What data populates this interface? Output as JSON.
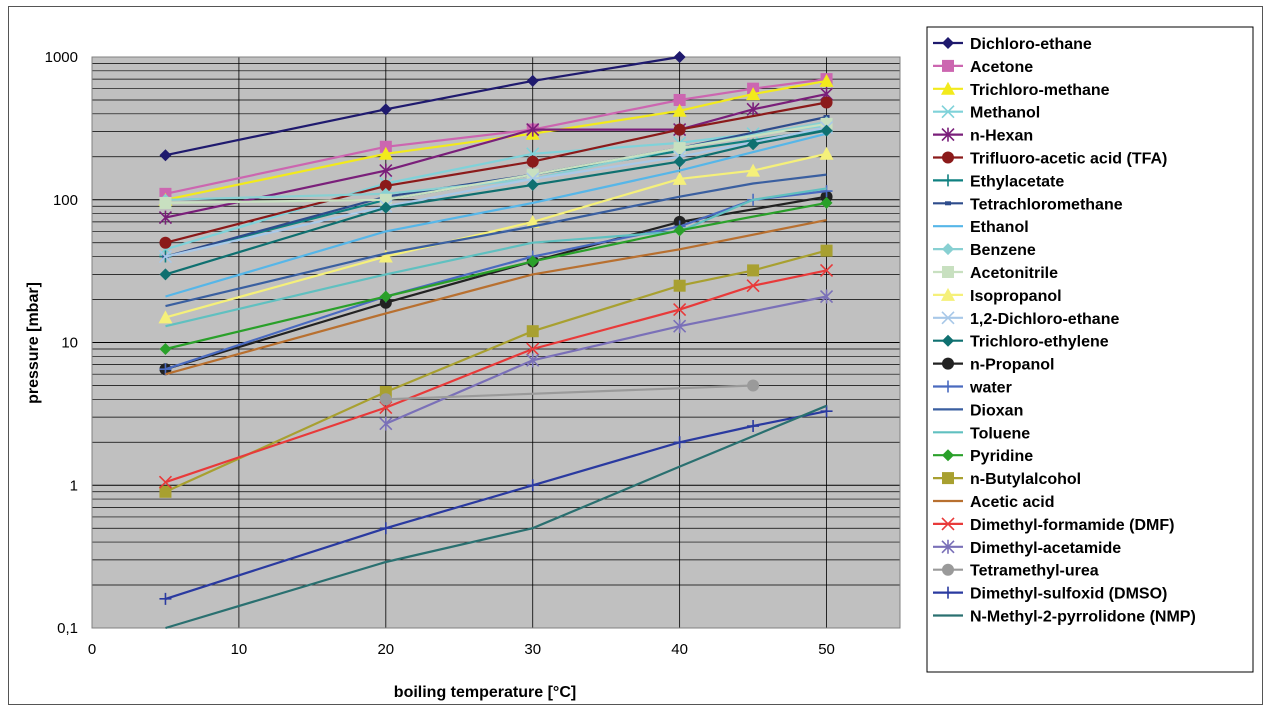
{
  "chart_data": {
    "type": "line",
    "title": "",
    "xlabel": "boiling temperature [°C]",
    "ylabel": "pressure [mbar]",
    "xlim": [
      0,
      55
    ],
    "ylim": [
      0.1,
      1000
    ],
    "yscale": "log",
    "grid": true,
    "legend_position": "right",
    "x_ticks": [
      "0",
      "10",
      "20",
      "30",
      "40",
      "50"
    ],
    "y_ticks": [
      "0,1",
      "1",
      "10",
      "100",
      "1000"
    ],
    "series": [
      {
        "name": "Dichloro-ethane",
        "color": "#1f1a6e",
        "marker": "diamond",
        "points": [
          [
            5,
            205
          ],
          [
            20,
            430
          ],
          [
            30,
            680
          ],
          [
            40,
            1000
          ]
        ]
      },
      {
        "name": "Acetone",
        "color": "#cc66b0",
        "marker": "square",
        "points": [
          [
            5,
            110
          ],
          [
            20,
            235
          ],
          [
            30,
            310
          ],
          [
            40,
            500
          ],
          [
            45,
            600
          ],
          [
            50,
            700
          ]
        ]
      },
      {
        "name": "Trichloro-methane",
        "color": "#f2ea1c",
        "marker": "triangle",
        "points": [
          [
            5,
            100
          ],
          [
            20,
            210
          ],
          [
            30,
            290
          ],
          [
            40,
            420
          ],
          [
            45,
            550
          ],
          [
            50,
            680
          ]
        ]
      },
      {
        "name": "Methanol",
        "color": "#7fd2d9",
        "marker": "x",
        "points": [
          [
            5,
            45
          ],
          [
            20,
            130
          ],
          [
            30,
            210
          ],
          [
            40,
            250
          ],
          [
            45,
            290
          ],
          [
            50,
            330
          ]
        ]
      },
      {
        "name": "n-Hexan",
        "color": "#7a1f7a",
        "marker": "star",
        "points": [
          [
            5,
            75
          ],
          [
            20,
            160
          ],
          [
            30,
            310
          ],
          [
            40,
            310
          ],
          [
            45,
            430
          ],
          [
            50,
            550
          ]
        ]
      },
      {
        "name": "Trifluoro-acetic acid (TFA)",
        "color": "#8b1a1a",
        "marker": "circle",
        "points": [
          [
            5,
            50
          ],
          [
            20,
            125
          ],
          [
            30,
            185
          ],
          [
            40,
            310
          ],
          [
            50,
            480
          ]
        ]
      },
      {
        "name": "Ethylacetate",
        "color": "#0f8080",
        "marker": "plus",
        "points": [
          [
            5,
            40
          ],
          [
            20,
            100
          ],
          [
            30,
            150
          ],
          [
            40,
            220
          ],
          [
            50,
            310
          ]
        ]
      },
      {
        "name": "Tetrachloromethane",
        "color": "#2e4c8c",
        "marker": "dash",
        "points": [
          [
            5,
            40
          ],
          [
            20,
            105
          ],
          [
            30,
            150
          ],
          [
            40,
            230
          ],
          [
            50,
            380
          ]
        ]
      },
      {
        "name": "Ethanol",
        "color": "#56b6e8",
        "marker": "none",
        "points": [
          [
            5,
            21
          ],
          [
            20,
            60
          ],
          [
            30,
            95
          ],
          [
            40,
            160
          ],
          [
            50,
            290
          ]
        ]
      },
      {
        "name": "Benzene",
        "color": "#88d0d2",
        "marker": "diamond",
        "points": [
          [
            5,
            100
          ],
          [
            20,
            110
          ],
          [
            30,
            140
          ],
          [
            40,
            230
          ],
          [
            50,
            350
          ]
        ]
      },
      {
        "name": "Acetonitrile",
        "color": "#c8e0c0",
        "marker": "square",
        "points": [
          [
            5,
            95
          ],
          [
            20,
            100
          ],
          [
            30,
            150
          ],
          [
            40,
            230
          ],
          [
            50,
            340
          ]
        ]
      },
      {
        "name": "Isopropanol",
        "color": "#f5f07a",
        "marker": "triangle",
        "points": [
          [
            5,
            15
          ],
          [
            20,
            40
          ],
          [
            30,
            70
          ],
          [
            40,
            140
          ],
          [
            45,
            160
          ],
          [
            50,
            210
          ]
        ]
      },
      {
        "name": "1,2-Dichloro-ethane",
        "color": "#a8c8e8",
        "marker": "x",
        "points": [
          [
            5,
            40
          ],
          [
            20,
            90
          ],
          [
            30,
            140
          ],
          [
            40,
            200
          ],
          [
            50,
            320
          ]
        ]
      },
      {
        "name": "Trichloro-ethylene",
        "color": "#0f7070",
        "marker": "diamond",
        "points": [
          [
            5,
            30
          ],
          [
            20,
            88
          ],
          [
            30,
            127
          ],
          [
            40,
            185
          ],
          [
            45,
            245
          ],
          [
            50,
            305
          ]
        ]
      },
      {
        "name": "n-Propanol",
        "color": "#222222",
        "marker": "circle",
        "points": [
          [
            5,
            6.5
          ],
          [
            20,
            19
          ],
          [
            30,
            37
          ],
          [
            40,
            70
          ],
          [
            50,
            105
          ]
        ]
      },
      {
        "name": "water",
        "color": "#4a6abf",
        "marker": "plus",
        "points": [
          [
            5,
            6.5
          ],
          [
            20,
            21
          ],
          [
            30,
            40
          ],
          [
            40,
            65
          ],
          [
            45,
            100
          ],
          [
            50,
            115
          ]
        ]
      },
      {
        "name": "Dioxan",
        "color": "#3a5fa0",
        "marker": "none",
        "points": [
          [
            5,
            18
          ],
          [
            20,
            42
          ],
          [
            30,
            65
          ],
          [
            40,
            105
          ],
          [
            45,
            130
          ],
          [
            50,
            150
          ]
        ]
      },
      {
        "name": "Toluene",
        "color": "#60c0c0",
        "marker": "none",
        "points": [
          [
            5,
            13
          ],
          [
            20,
            30
          ],
          [
            30,
            50
          ],
          [
            40,
            60
          ],
          [
            45,
            100
          ],
          [
            50,
            120
          ]
        ]
      },
      {
        "name": "Pyridine",
        "color": "#2aa02a",
        "marker": "diamond",
        "points": [
          [
            5,
            9
          ],
          [
            20,
            21
          ],
          [
            30,
            37
          ],
          [
            40,
            61
          ],
          [
            50,
            95
          ]
        ]
      },
      {
        "name": "n-Butylalcohol",
        "color": "#a8a030",
        "marker": "square",
        "points": [
          [
            5,
            0.9
          ],
          [
            20,
            4.5
          ],
          [
            30,
            12
          ],
          [
            40,
            25
          ],
          [
            45,
            32
          ],
          [
            50,
            44
          ]
        ]
      },
      {
        "name": "Acetic acid",
        "color": "#b87030",
        "marker": "none",
        "points": [
          [
            5,
            6
          ],
          [
            20,
            16
          ],
          [
            30,
            30
          ],
          [
            40,
            45
          ],
          [
            50,
            72
          ]
        ]
      },
      {
        "name": "Dimethyl-formamide (DMF)",
        "color": "#e83a3a",
        "marker": "x",
        "points": [
          [
            5,
            1.05
          ],
          [
            20,
            3.5
          ],
          [
            30,
            9
          ],
          [
            40,
            17
          ],
          [
            45,
            25
          ],
          [
            50,
            32
          ]
        ]
      },
      {
        "name": "Dimethyl-acetamide",
        "color": "#7a70b8",
        "marker": "star",
        "points": [
          [
            20,
            2.7
          ],
          [
            30,
            7.5
          ],
          [
            40,
            13
          ],
          [
            50,
            21
          ]
        ]
      },
      {
        "name": "Tetramethyl-urea",
        "color": "#9a9a9a",
        "marker": "circle",
        "points": [
          [
            20,
            4
          ],
          [
            45,
            5
          ]
        ]
      },
      {
        "name": "Dimethyl-sulfoxid (DMSO)",
        "color": "#2a3aa0",
        "marker": "plus",
        "points": [
          [
            5,
            0.16
          ],
          [
            20,
            0.5
          ],
          [
            30,
            1
          ],
          [
            40,
            2
          ],
          [
            45,
            2.6
          ],
          [
            50,
            3.3
          ]
        ]
      },
      {
        "name": "N-Methyl-2-pyrrolidone (NMP)",
        "color": "#2a7070",
        "marker": "none",
        "points": [
          [
            5,
            0.1
          ],
          [
            20,
            0.29
          ],
          [
            30,
            0.5
          ],
          [
            40,
            1.35
          ],
          [
            50,
            3.6
          ]
        ]
      }
    ]
  }
}
